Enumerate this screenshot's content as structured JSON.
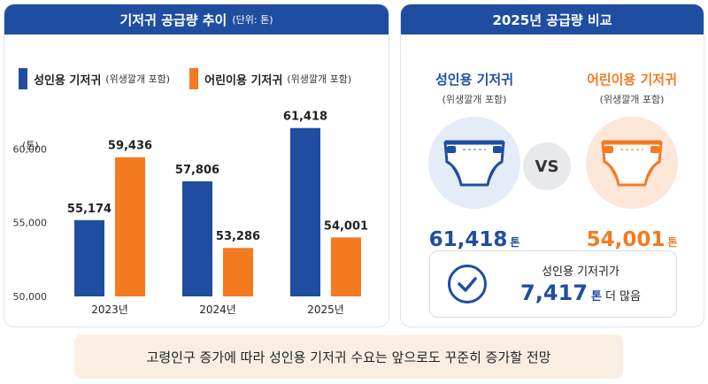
{
  "left_panel": {
    "title": "기저귀 공급량 추이",
    "unit": "(단위: 톤)",
    "y_unit": "(톤)"
  },
  "legend": [
    {
      "label": "성인용 기저귀",
      "sub": "(위생깔개 포함)",
      "color": "#1f4ea1"
    },
    {
      "label": "어린이용 기저귀",
      "sub": "(위생깔개 포함)",
      "color": "#f47a20"
    }
  ],
  "chart_data": {
    "type": "bar",
    "categories": [
      "2023년",
      "2024년",
      "2025년"
    ],
    "series": [
      {
        "name": "성인용 기저귀",
        "values": [
          55174,
          57806,
          61418
        ],
        "labels": [
          "55,174",
          "57,806",
          "61,418"
        ],
        "color": "#1f4ea1"
      },
      {
        "name": "어린이용 기저귀",
        "values": [
          59436,
          53286,
          54001
        ],
        "labels": [
          "59,436",
          "53,286",
          "54,001"
        ],
        "color": "#f47a20"
      }
    ],
    "yticks": [
      50000,
      55000,
      60000
    ],
    "ytick_labels": [
      "50,000",
      "55,000",
      "60,000"
    ],
    "ylim": [
      50000,
      62600
    ],
    "ylabel": "(톤)",
    "legend_position": "top"
  },
  "right_panel": {
    "title": "2025년 공급량 비교",
    "adult": {
      "title": "성인용 기저귀",
      "sub": "(위생깔개 포함)",
      "value": "61,418",
      "unit": "톤",
      "color": "#1f4ea1"
    },
    "kids": {
      "title": "어린이용 기저귀",
      "sub": "(위생깔개 포함)",
      "value": "54,001",
      "unit": "톤",
      "color": "#f47a20"
    },
    "vs": "VS",
    "diff": {
      "line1": "성인용 기저귀가",
      "value": "7,417",
      "unit": "톤",
      "tail": "더 많음"
    }
  },
  "footer": "고령인구 증가에 따라 성인용 기저귀 수요는 앞으로도 꾸준히 증가할 전망",
  "icons": [
    "adult-diaper-icon",
    "kids-diaper-icon",
    "check-circle-icon"
  ]
}
